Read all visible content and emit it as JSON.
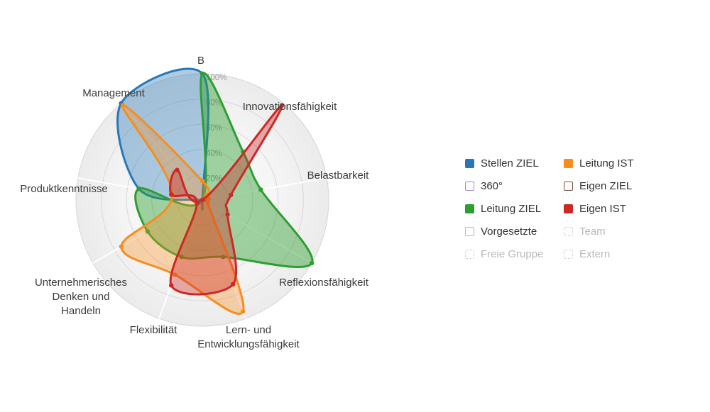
{
  "chart_data": {
    "type": "radar",
    "title": "",
    "unit": "%",
    "rmax": 100,
    "grid": true,
    "legend_position": "right",
    "radial_ticks": [
      20,
      40,
      60,
      80,
      100
    ],
    "tick_labels": [
      "20%",
      "40%",
      "60%",
      "80%",
      "100%"
    ],
    "axes": [
      "B",
      "Innovationsfähigkeit",
      "Belastbarkeit",
      "Reflexionsfähigkeit",
      "Lern- und Entwicklungsfähigkeit",
      "Flexibilität",
      "Unternehmerisches Denken und Handeln",
      "Produktkenntnisse",
      "Management"
    ],
    "axes_display_lines": [
      [
        "B"
      ],
      [
        "Innovationsfähigkeit"
      ],
      [
        "Belastbarkeit"
      ],
      [
        "Reflexionsfähigkeit"
      ],
      [
        "Lern- und",
        "Entwicklungsfähigkeit"
      ],
      [
        "Flexibilität"
      ],
      [
        "Unternehmerisches",
        "Denken und",
        "Handeln"
      ],
      [
        "Produktkenntnisse"
      ],
      [
        "Management"
      ]
    ],
    "series": [
      {
        "name": "Stellen ZIEL",
        "color": "#2878b8",
        "fill_opacity": 0.38,
        "values": [
          100,
          0,
          0,
          0,
          0,
          0,
          0,
          51,
          100
        ]
      },
      {
        "name": "Leitung ZIEL",
        "color": "#2f9e32",
        "fill_opacity": 0.45,
        "values": [
          100,
          50,
          47,
          100,
          48,
          48,
          50,
          51,
          0
        ]
      },
      {
        "name": "Leitung IST",
        "color": "#f78d1e",
        "fill_opacity": 0.35,
        "values": [
          15,
          5,
          5,
          5,
          94,
          63,
          74,
          24,
          98
        ]
      },
      {
        "name": "Eigen IST",
        "color": "#cc2826",
        "fill_opacity": 0.38,
        "values": [
          0,
          98,
          23,
          23,
          71,
          72,
          5,
          25,
          31
        ]
      }
    ]
  },
  "legend": {
    "rows": [
      [
        {
          "label": "Stellen ZIEL",
          "slug": "stellen-ziel",
          "swatch": "filled",
          "color": "#2878b8",
          "enabled": true
        },
        {
          "label": "Leitung IST",
          "slug": "leitung-ist",
          "swatch": "filled",
          "color": "#f78d1e",
          "enabled": true
        }
      ],
      [
        {
          "label": "360°",
          "slug": "360",
          "swatch": "empty",
          "color": "#a588c5",
          "enabled": true
        },
        {
          "label": "Eigen ZIEL",
          "slug": "eigen-ziel",
          "swatch": "empty",
          "color": "#7a4f47",
          "enabled": true
        }
      ],
      [
        {
          "label": "Leitung ZIEL",
          "slug": "leitung-ziel",
          "swatch": "filled",
          "color": "#2f9e32",
          "enabled": true
        },
        {
          "label": "Eigen IST",
          "slug": "eigen-ist",
          "swatch": "filled",
          "color": "#cc2826",
          "enabled": true
        }
      ],
      [
        {
          "label": "Vorgesetzte",
          "slug": "vorgesetzte",
          "swatch": "empty",
          "color": "#daa2d0",
          "enabled": true
        },
        {
          "label": "Team",
          "slug": "team",
          "swatch": "disabled",
          "color": "#cfcfcf",
          "enabled": false
        }
      ],
      [
        {
          "label": "Freie Gruppe",
          "slug": "freie-gruppe",
          "swatch": "disabled",
          "color": "#cfcfcf",
          "enabled": false
        },
        {
          "label": "Extern",
          "slug": "extern",
          "swatch": "disabled",
          "color": "#cfcfcf",
          "enabled": false
        }
      ]
    ]
  }
}
